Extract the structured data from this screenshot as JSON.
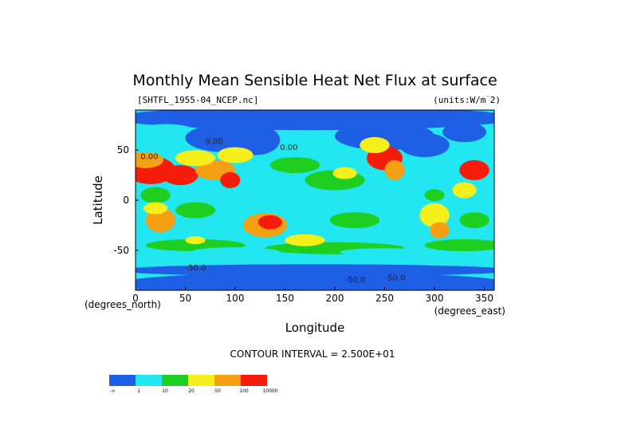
{
  "chart_data": {
    "type": "heatmap",
    "title": "Monthly Mean Sensible Heat Net Flux at surface",
    "file_label": "[SHTFL_1955-04_NCEP.nc]",
    "units_label": "(units:W/m^2)",
    "xlabel": "Longitude",
    "ylabel": "Latitude",
    "x_unit_label": "(degrees_east)",
    "y_unit_label": "(degrees_north)",
    "xlim": [
      0,
      360
    ],
    "ylim": [
      -90,
      90
    ],
    "x_ticks": [
      0,
      50,
      100,
      150,
      200,
      250,
      300,
      350
    ],
    "y_ticks": [
      50,
      0,
      -50
    ],
    "contour_interval_text": "CONTOUR INTERVAL = 2.500E+01",
    "contour_labels": [
      "0.00",
      "0.00",
      "0.00",
      "-50.0",
      "-50.0",
      "-50.0"
    ],
    "legend": {
      "bins": [
        "-∞",
        "1",
        "10",
        "20",
        "50",
        "100",
        "10000"
      ],
      "colors": [
        "#1f5fe6",
        "#22e6f0",
        "#1ecf22",
        "#f5f01c",
        "#f5a012",
        "#f51c0c"
      ]
    }
  }
}
